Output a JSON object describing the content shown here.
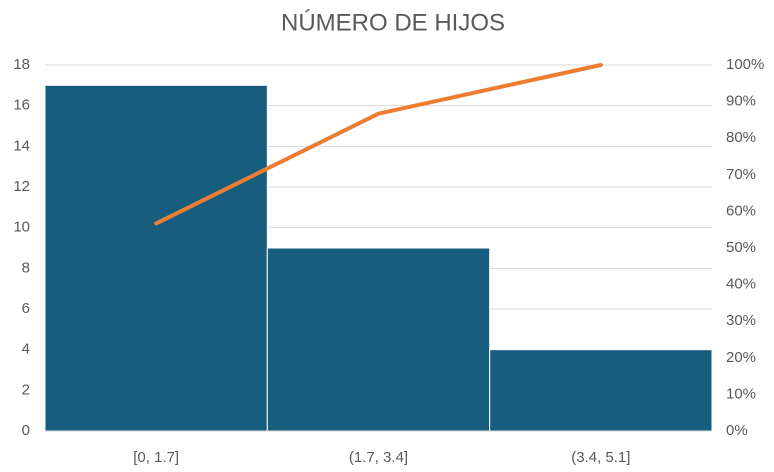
{
  "chart_data": {
    "type": "pareto",
    "title": "NÚMERO DE HIJOS",
    "categories": [
      "[0, 1.7]",
      "(1.7, 3.4]",
      "(3.4, 5.1]"
    ],
    "series": [
      {
        "type": "bar",
        "color": "#175e7e",
        "values": [
          17,
          9,
          4
        ]
      },
      {
        "type": "line",
        "color": "#ed7d31",
        "axis": "y2",
        "values": [
          56.7,
          86.7,
          100
        ]
      }
    ],
    "ylim": [
      0,
      18
    ],
    "yticks": [
      0,
      2,
      4,
      6,
      8,
      10,
      12,
      14,
      16,
      18
    ],
    "y2lim": [
      0,
      100
    ],
    "y2ticks": [
      {
        "value": 0,
        "label": "0%"
      },
      {
        "value": 10,
        "label": "10%"
      },
      {
        "value": 20,
        "label": "20%"
      },
      {
        "value": 30,
        "label": "30%"
      },
      {
        "value": 40,
        "label": "40%"
      },
      {
        "value": 50,
        "label": "50%"
      },
      {
        "value": 60,
        "label": "60%"
      },
      {
        "value": 70,
        "label": "70%"
      },
      {
        "value": 80,
        "label": "80%"
      },
      {
        "value": 90,
        "label": "90%"
      },
      {
        "value": 100,
        "label": "100%"
      }
    ],
    "grid": true
  }
}
